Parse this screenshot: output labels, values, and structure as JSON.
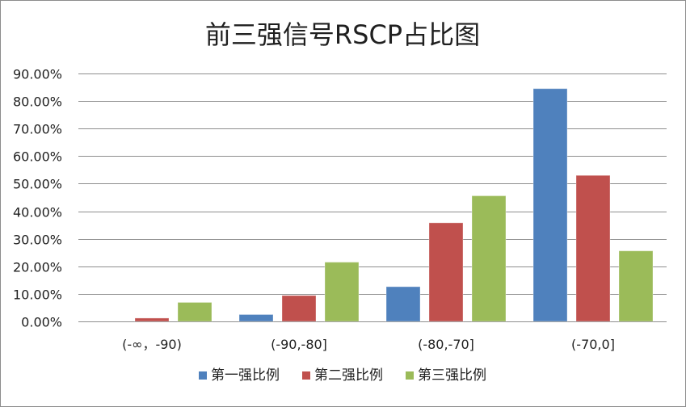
{
  "chart_data": {
    "type": "bar",
    "title": "前三强信号RSCP占比图",
    "xlabel": "",
    "ylabel": "",
    "categories": [
      "(-∞，-90)",
      "(-90,-80]",
      "(-80,-70]",
      "(-70,0]"
    ],
    "series": [
      {
        "name": "第一强比例",
        "color": "#4f81bd",
        "values": [
          0.0,
          2.5,
          12.6,
          84.5
        ]
      },
      {
        "name": "第二强比例",
        "color": "#c0504d",
        "values": [
          1.2,
          9.4,
          35.8,
          53.0
        ]
      },
      {
        "name": "第三强比例",
        "color": "#9bbb59",
        "values": [
          6.9,
          21.5,
          45.6,
          25.6
        ]
      }
    ],
    "ylim": [
      0,
      90
    ],
    "yticks": [
      "0.00%",
      "10.00%",
      "20.00%",
      "30.00%",
      "40.00%",
      "50.00%",
      "60.00%",
      "70.00%",
      "80.00%",
      "90.00%"
    ],
    "grid": true,
    "legend_position": "bottom"
  }
}
